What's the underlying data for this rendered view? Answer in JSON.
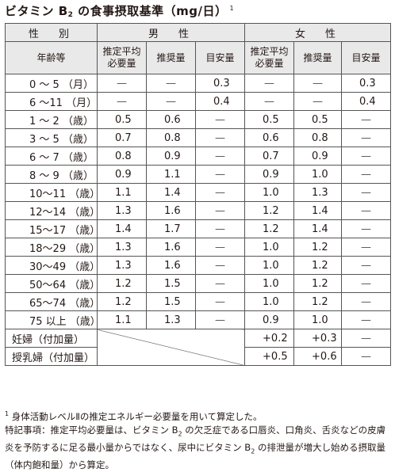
{
  "title": {
    "prefix": "ビタミン B",
    "sub": "2",
    "suffix": " の食事摂取基準（mg/日）",
    "note_mark": "1"
  },
  "header": {
    "sex_label": "性　別",
    "male_label": "男　性",
    "female_label": "女　性",
    "age_label": "年齢等",
    "cols": [
      "推定平均\n必要量",
      "推奨量",
      "目安量",
      "推定平均\n必要量",
      "推奨量",
      "目安量"
    ]
  },
  "rows": [
    {
      "age": "0 ～ 5 （月）",
      "cells": [
        "—",
        "—",
        "0.3",
        "—",
        "—",
        "0.3"
      ]
    },
    {
      "age": "6 ～11 （月）",
      "cells": [
        "—",
        "—",
        "0.4",
        "—",
        "—",
        "0.4"
      ]
    },
    {
      "age": "1 ～ 2 （歳）",
      "cells": [
        "0.5",
        "0.6",
        "—",
        "0.5",
        "0.5",
        "—"
      ]
    },
    {
      "age": "3 ～ 5 （歳）",
      "cells": [
        "0.7",
        "0.8",
        "—",
        "0.6",
        "0.8",
        "—"
      ]
    },
    {
      "age": "6 ～ 7 （歳）",
      "cells": [
        "0.8",
        "0.9",
        "—",
        "0.7",
        "0.9",
        "—"
      ]
    },
    {
      "age": "8 ～ 9 （歳）",
      "cells": [
        "0.9",
        "1.1",
        "—",
        "0.9",
        "1.0",
        "—"
      ]
    },
    {
      "age": "10～11 （歳）",
      "cells": [
        "1.1",
        "1.4",
        "—",
        "1.0",
        "1.3",
        "—"
      ]
    },
    {
      "age": "12～14 （歳）",
      "cells": [
        "1.3",
        "1.6",
        "—",
        "1.2",
        "1.4",
        "—"
      ]
    },
    {
      "age": "15～17 （歳）",
      "cells": [
        "1.4",
        "1.7",
        "—",
        "1.2",
        "1.4",
        "—"
      ]
    },
    {
      "age": "18～29 （歳）",
      "cells": [
        "1.3",
        "1.6",
        "—",
        "1.0",
        "1.2",
        "—"
      ]
    },
    {
      "age": "30～49 （歳）",
      "cells": [
        "1.3",
        "1.6",
        "—",
        "1.0",
        "1.2",
        "—"
      ]
    },
    {
      "age": "50～64 （歳）",
      "cells": [
        "1.2",
        "1.5",
        "—",
        "1.0",
        "1.2",
        "—"
      ]
    },
    {
      "age": "65～74 （歳）",
      "cells": [
        "1.2",
        "1.5",
        "—",
        "1.0",
        "1.2",
        "—"
      ]
    },
    {
      "age": "75 以上 （歳）",
      "cells": [
        "1.1",
        "1.3",
        "—",
        "0.9",
        "1.0",
        "—"
      ]
    }
  ],
  "extra_rows": [
    {
      "label": "妊婦（付加量）",
      "cells": [
        "+0.2",
        "+0.3",
        "—"
      ]
    },
    {
      "label": "授乳婦（付加量）",
      "cells": [
        "+0.5",
        "+0.6",
        "—"
      ]
    }
  ],
  "notes": {
    "n1_mark": "1",
    "n1": " 身体活動レベルⅡの推定エネルギー必要量を用いて算定した。",
    "n2_a": "特記事項：推定平均必要量は、ビタミン B",
    "n2_sub1": "2",
    "n2_b": " の欠乏症である口唇炎、口角炎、舌炎などの皮膚炎を予防するに足る最小量からではなく、尿中にビタミン B",
    "n2_sub2": "2",
    "n2_c": " の排泄量が増大し始める摂取量（体内飽和量）から算定。"
  }
}
